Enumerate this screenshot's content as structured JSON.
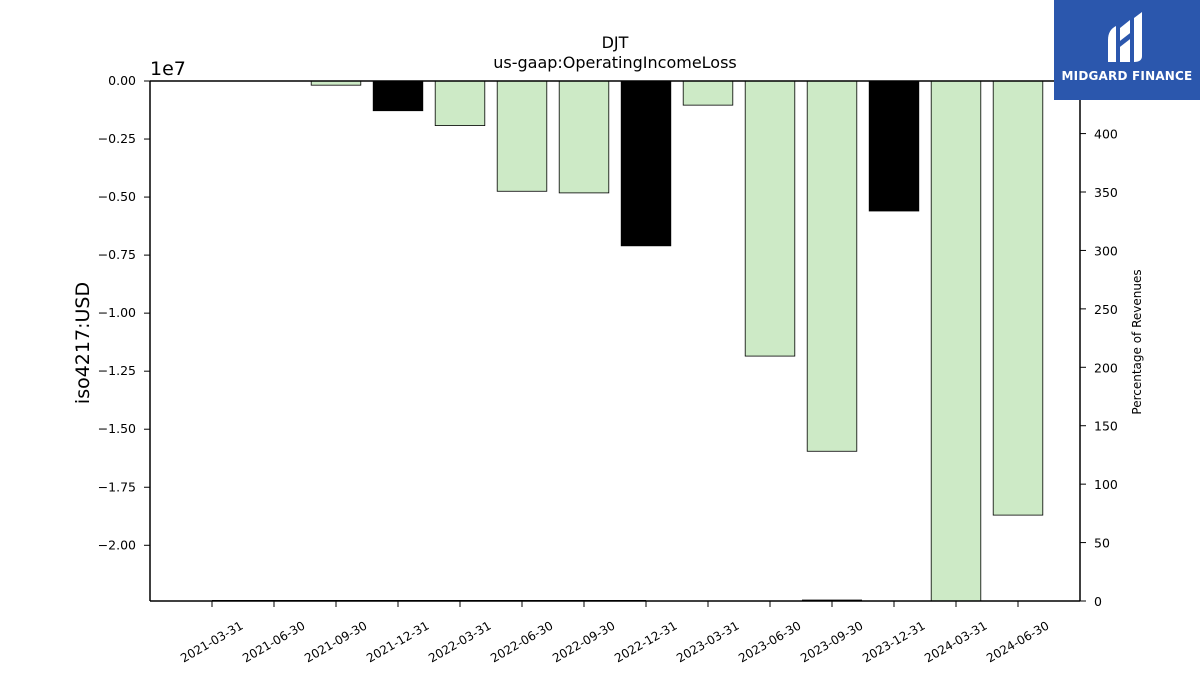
{
  "chart_data": {
    "type": "bar",
    "title": "DJT",
    "subtitle": "us-gaap:OperatingIncomeLoss",
    "ylabel": "iso4217:USD",
    "y_offset_label": "1e7",
    "y2label": "Percentage of Revenues",
    "categories": [
      "2021-03-31",
      "2021-06-30",
      "2021-09-30",
      "2021-12-31",
      "2022-03-31",
      "2022-06-30",
      "2022-09-30",
      "2022-12-31",
      "2023-03-31",
      "2023-06-30",
      "2023-09-30",
      "2023-12-31",
      "2024-03-31",
      "2024-06-30"
    ],
    "series": [
      {
        "values": [
          0,
          0,
          -180000,
          -1280000,
          -1920000,
          -4750000,
          -4820000,
          -7100000,
          -1040000,
          -11850000,
          -15950000,
          -5600000,
          -22400000,
          -18700000
        ],
        "colors": [
          "#cdeac6",
          "#cdeac6",
          "#cdeac6",
          "#000000",
          "#cdeac6",
          "#cdeac6",
          "#cdeac6",
          "#000000",
          "#cdeac6",
          "#cdeac6",
          "#cdeac6",
          "#000000",
          "#cdeac6",
          "#cdeac6"
        ]
      }
    ],
    "secondary_series": {
      "values": [
        0.2,
        0.2,
        0.2,
        0.2,
        0.2,
        0.2,
        0.2,
        0.2,
        null,
        null,
        0.5,
        null,
        null,
        null
      ]
    },
    "ylim": [
      -22400000,
      0
    ],
    "y2lim": [
      0,
      445
    ],
    "yticks": [
      0,
      -2500000,
      -5000000,
      -7500000,
      -10000000,
      -12500000,
      -15000000,
      -17500000,
      -20000000
    ],
    "yticklabels": [
      "0.00",
      "−0.25",
      "−0.50",
      "−0.75",
      "−1.00",
      "−1.25",
      "−1.50",
      "−1.75",
      "−2.00"
    ],
    "y2ticks": [
      0,
      50,
      100,
      150,
      200,
      250,
      300,
      350,
      400
    ],
    "y2ticklabels": [
      "0",
      "50",
      "100",
      "150",
      "200",
      "250",
      "300",
      "350",
      "400"
    ],
    "grid": false,
    "colors": {
      "positive_bar": "#cdeac6",
      "highlight_bar": "#000000",
      "edge": "#000000"
    }
  },
  "logo": {
    "text": "MIDGARD FINANCE",
    "icon": "midgard-logo-icon",
    "color": "#2b57ad"
  }
}
